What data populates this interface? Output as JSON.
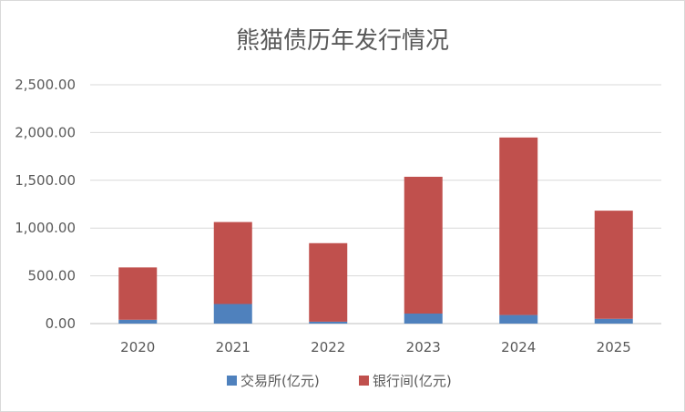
{
  "chart_data": {
    "type": "bar",
    "stacked": true,
    "title": "熊猫债历年发行情况",
    "categories": [
      "2020",
      "2021",
      "2022",
      "2023",
      "2024",
      "2025"
    ],
    "series": [
      {
        "name": "交易所(亿元)",
        "color": "#4f81bd",
        "values": [
          40,
          205,
          20,
          105,
          90,
          50
        ]
      },
      {
        "name": "银行间(亿元)",
        "color": "#c0504d",
        "values": [
          548,
          858,
          822,
          1432,
          1858,
          1132
        ]
      }
    ],
    "y_ticks": [
      "0.00",
      "500.00",
      "1,000.00",
      "1,500.00",
      "2,000.00",
      "2,500.00"
    ],
    "ylim": [
      0,
      2500
    ],
    "grid": true,
    "legend_position": "bottom"
  }
}
